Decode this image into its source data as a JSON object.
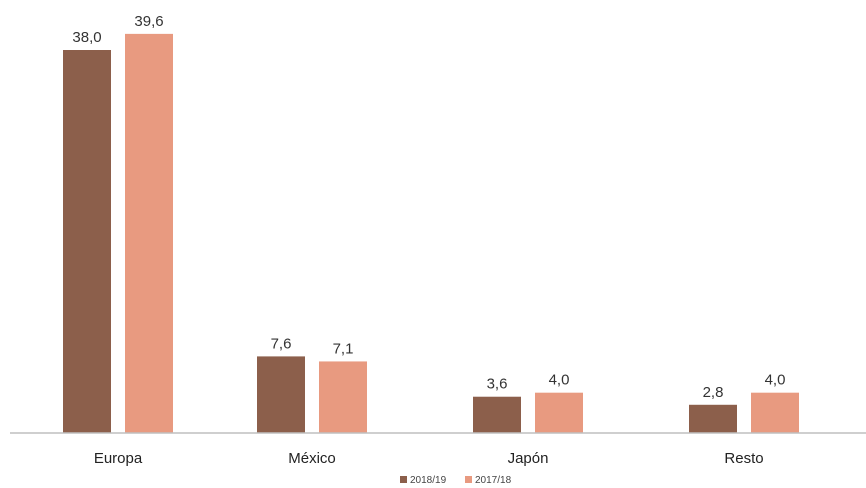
{
  "chart_data": {
    "type": "bar",
    "categories": [
      "Europa",
      "México",
      "Japón",
      "Resto"
    ],
    "series": [
      {
        "name": "2018/19",
        "values": [
          38.0,
          7.6,
          3.6,
          2.8
        ],
        "labels": [
          "38,0",
          "7,6",
          "3,6",
          "2,8"
        ],
        "color": "#8c5f4b"
      },
      {
        "name": "2017/18",
        "values": [
          39.6,
          7.1,
          4.0,
          4.0
        ],
        "labels": [
          "39,6",
          "7,1",
          "4,0",
          "4,0"
        ],
        "color": "#e89a80"
      }
    ],
    "ylim": [
      0,
      40
    ],
    "grid": false,
    "legend_position": "bottom-center",
    "axis_color": "#bfbfbf"
  }
}
